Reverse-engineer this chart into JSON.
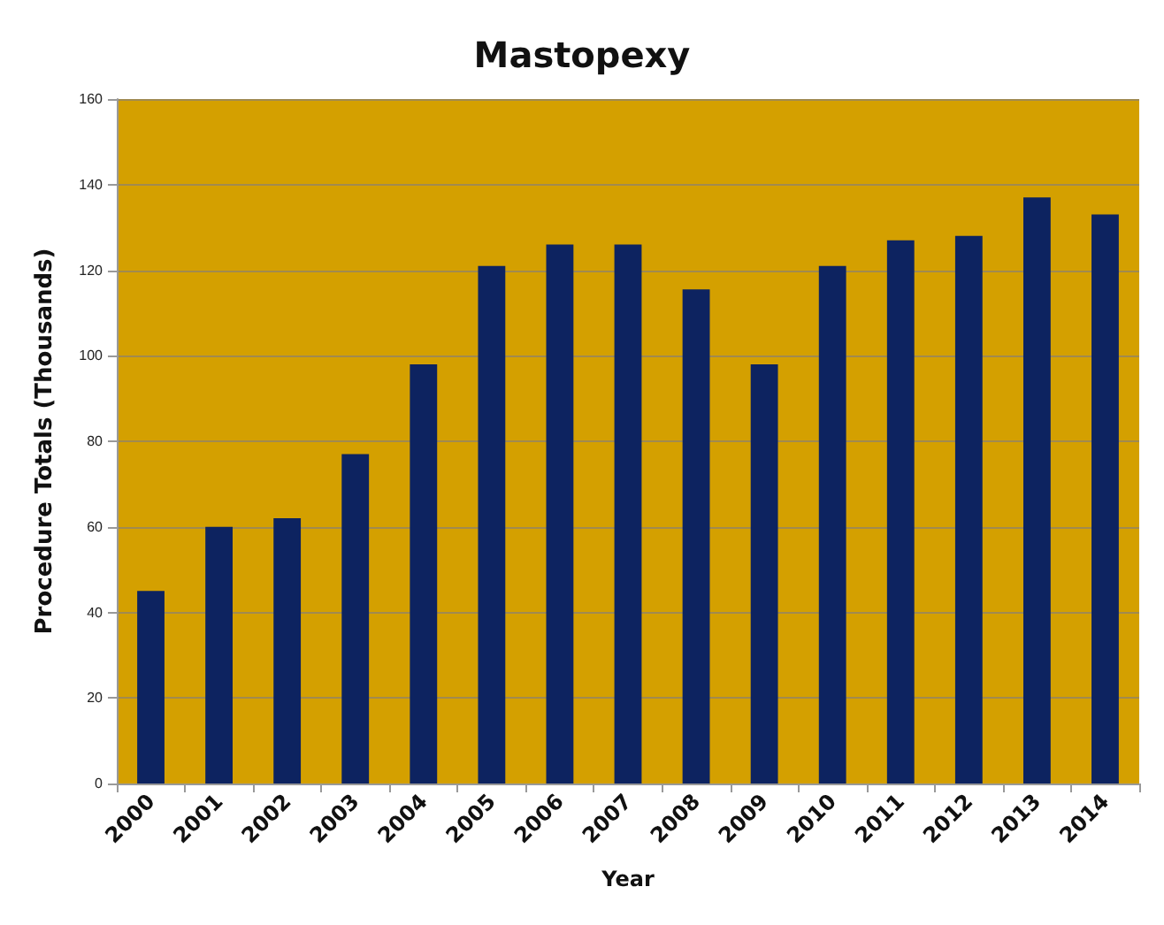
{
  "chart_data": {
    "type": "bar",
    "title": "Mastopexy",
    "xlabel": "Year",
    "ylabel": "Procedure Totals (Thousands)",
    "categories": [
      "2000",
      "2001",
      "2002",
      "2003",
      "2004",
      "2005",
      "2006",
      "2007",
      "2008",
      "2009",
      "2010",
      "2011",
      "2012",
      "2013",
      "2014"
    ],
    "values": [
      45,
      60,
      62,
      77,
      98,
      121,
      126,
      126,
      115.5,
      98,
      121,
      127,
      128,
      137,
      133
    ],
    "color": "#0d2360",
    "ylim": [
      0,
      160
    ],
    "yticks": [
      0,
      20,
      40,
      60,
      80,
      100,
      120,
      140,
      160
    ],
    "grid": "y"
  }
}
